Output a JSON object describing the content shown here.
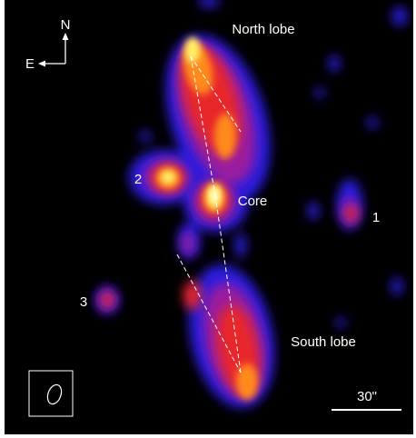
{
  "compass": {
    "north": "N",
    "east": "E"
  },
  "labels": {
    "north_lobe": "North lobe",
    "core": "Core",
    "south_lobe": "South lobe",
    "source_1": "1",
    "source_2": "2",
    "source_3": "3"
  },
  "scale_bar": "30\""
}
